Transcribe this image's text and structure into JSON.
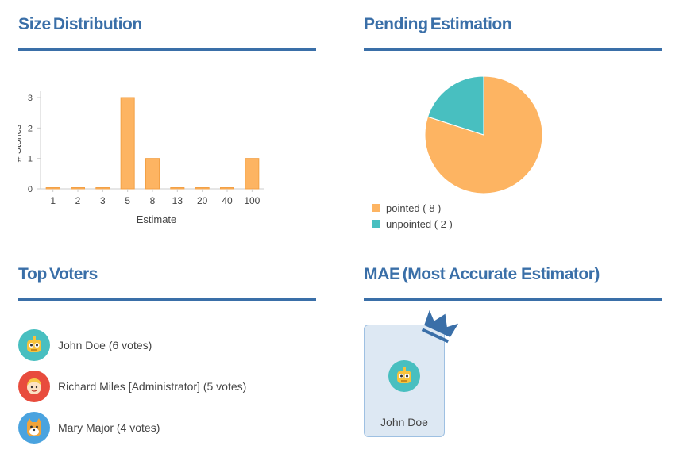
{
  "size_panel": {
    "title_bold": "Size",
    "title_rest": "Distribution"
  },
  "pending_panel": {
    "title_bold": "Pending",
    "title_rest": "Estimation"
  },
  "top_panel": {
    "title_bold": "Top",
    "title_rest": "Voters"
  },
  "mae_panel": {
    "title_bold": "MAE",
    "title_rest": "(Most Accurate Estimator)"
  },
  "chart_data": [
    {
      "type": "bar",
      "categories": [
        "1",
        "2",
        "3",
        "5",
        "8",
        "13",
        "20",
        "40",
        "100"
      ],
      "values": [
        0,
        0,
        0,
        3,
        1,
        0,
        0,
        0,
        1
      ],
      "xlabel": "Estimate",
      "ylabel": "# Stories",
      "ylim": [
        0,
        3
      ],
      "yticks": [
        0,
        1,
        2,
        3
      ],
      "bar_color": "#fdb462",
      "grid": false
    },
    {
      "type": "pie",
      "slices": [
        {
          "label": "pointed ( 8 )",
          "value": 8,
          "color": "#fdb462"
        },
        {
          "label": "unpointed ( 2 )",
          "value": 2,
          "color": "#48bfc0"
        }
      ],
      "legend_position": "bottom-left"
    }
  ],
  "voters": [
    {
      "name": "John Doe (6 votes)",
      "avatar_icon": "robot-icon",
      "avatar_color": "#48bfc0"
    },
    {
      "name": "Richard Miles [Administrator] (5 votes)",
      "avatar_icon": "blond-person-icon",
      "avatar_color": "#e84c3d"
    },
    {
      "name": "Mary Major (4 votes)",
      "avatar_icon": "cat-icon",
      "avatar_color": "#4aa3df"
    }
  ],
  "mae": {
    "name": "John Doe",
    "avatar_icon": "robot-icon",
    "avatar_color": "#48bfc0",
    "badge_icon": "crown-icon"
  },
  "colors": {
    "accent": "#3a6fa8"
  }
}
